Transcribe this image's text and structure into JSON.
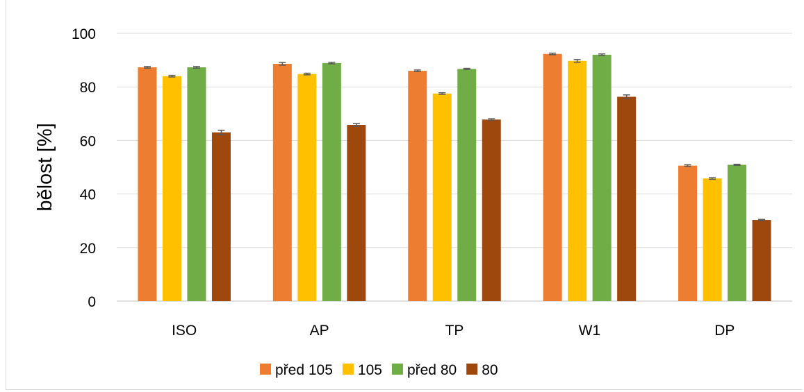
{
  "chart_data": {
    "type": "bar",
    "title": "",
    "xlabel": "",
    "ylabel": "bělost [%]",
    "ylim": [
      0,
      100
    ],
    "yticks": [
      0,
      20,
      40,
      60,
      80,
      100
    ],
    "grid": true,
    "legend_position": "bottom",
    "categories": [
      "ISO",
      "AP",
      "TP",
      "W1",
      "DP"
    ],
    "series": [
      {
        "name": "před 105",
        "color": "#ED7D31",
        "values": [
          87.3,
          88.6,
          86.0,
          92.3,
          50.6
        ],
        "errors": [
          0.3,
          0.5,
          0.3,
          0.3,
          0.3
        ]
      },
      {
        "name": "105",
        "color": "#FFC000",
        "values": [
          84.0,
          84.8,
          77.5,
          89.7,
          45.8
        ],
        "errors": [
          0.3,
          0.3,
          0.3,
          0.5,
          0.3
        ]
      },
      {
        "name": "před 80",
        "color": "#70AD47",
        "values": [
          87.3,
          88.9,
          86.7,
          92.0,
          50.9
        ],
        "errors": [
          0.3,
          0.3,
          0.2,
          0.3,
          0.2
        ]
      },
      {
        "name": "80",
        "color": "#9E480E",
        "values": [
          63.0,
          65.8,
          67.8,
          76.3,
          30.3
        ],
        "errors": [
          0.8,
          0.5,
          0.3,
          0.7,
          0.2
        ]
      }
    ]
  }
}
